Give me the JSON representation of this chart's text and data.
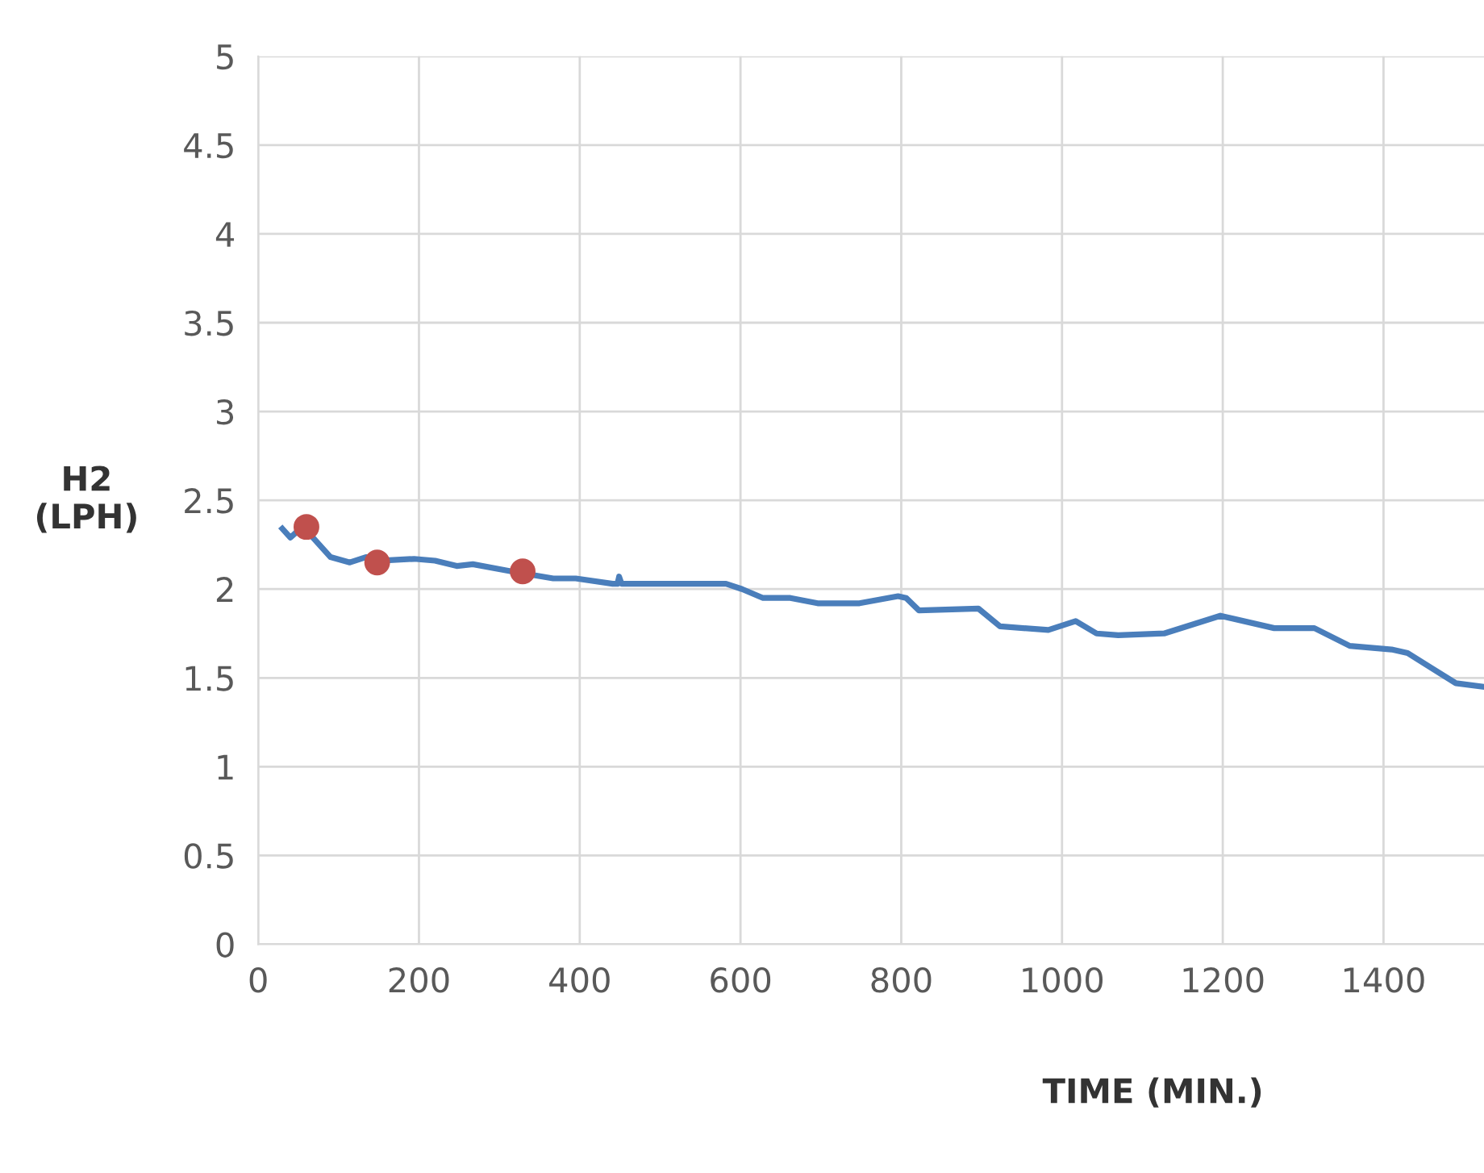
{
  "chart_data": {
    "type": "line",
    "xlabel": "TIME (MIN.)",
    "ylabel": "H2\n(LPH)",
    "xlim": [
      0,
      1525
    ],
    "ylim": [
      0,
      5
    ],
    "xticks": [
      0,
      200,
      400,
      600,
      800,
      1000,
      1200,
      1400
    ],
    "yticks": [
      0,
      0.5,
      1,
      1.5,
      2,
      2.5,
      3,
      3.5,
      4,
      4.5,
      5
    ],
    "grid": true,
    "legend": false,
    "line_style": "solid",
    "series": [
      {
        "marker": "none",
        "color": "#4a7ebb",
        "x": [
          30,
          40,
          50,
          66,
          90,
          114,
          134,
          154,
          194,
          220,
          247,
          267,
          315,
          367,
          395,
          441,
          447,
          449,
          452,
          461,
          582,
          602,
          628,
          662,
          696,
          748,
          796,
          806,
          822,
          896,
          923,
          983,
          1017,
          1043,
          1070,
          1127,
          1197,
          1264,
          1314,
          1358,
          1410,
          1430,
          1490,
          1525
        ],
        "values": [
          2.34,
          2.29,
          2.33,
          2.3,
          2.18,
          2.15,
          2.18,
          2.16,
          2.17,
          2.16,
          2.13,
          2.14,
          2.1,
          2.06,
          2.06,
          2.03,
          2.03,
          2.07,
          2.03,
          2.03,
          2.03,
          2.0,
          1.95,
          1.95,
          1.92,
          1.92,
          1.96,
          1.95,
          1.88,
          1.89,
          1.79,
          1.77,
          1.82,
          1.75,
          1.74,
          1.75,
          1.85,
          1.78,
          1.78,
          1.68,
          1.66,
          1.64,
          1.47,
          1.45
        ]
      },
      {
        "type": "scatter",
        "marker": "circle",
        "color": "#c0504d",
        "x": [
          60,
          148,
          329
        ],
        "values": [
          2.35,
          2.15,
          2.1
        ]
      }
    ]
  }
}
